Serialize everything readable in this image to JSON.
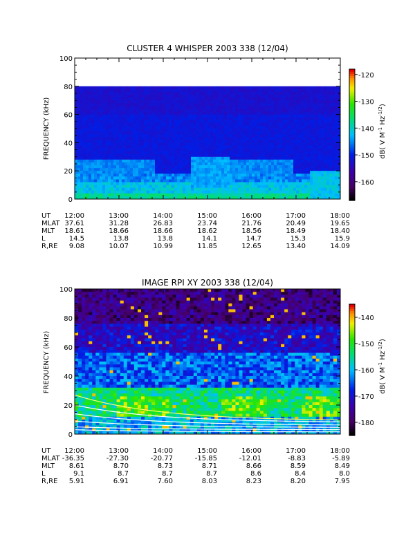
{
  "chart_data": [
    {
      "type": "heatmap",
      "title": "CLUSTER 4 WHISPER 2003 338 (12/04)",
      "ylabel": "FREQUENCY (kHz)",
      "ylim": [
        0,
        100
      ],
      "yticks": [
        0,
        20,
        40,
        60,
        80,
        100
      ],
      "data_ylim": [
        0,
        80
      ],
      "x_ticks": [
        "12:00",
        "13:00",
        "14:00",
        "15:00",
        "16:00",
        "17:00",
        "18:00"
      ],
      "colorbar": {
        "label_parts": [
          "dB( V M",
          "-1",
          " Hz",
          "-1/2",
          ")"
        ],
        "range": [
          -167,
          -118
        ],
        "ticks": [
          -120,
          -130,
          -140,
          -150,
          -160
        ]
      },
      "ephemeris": [
        {
          "label": "UT",
          "values": [
            "12:00",
            "13:00",
            "14:00",
            "15:00",
            "16:00",
            "17:00",
            "18:00"
          ]
        },
        {
          "label": "MLAT",
          "values": [
            "37.61",
            "31.28",
            "26.83",
            "23.74",
            "21.76",
            "20.49",
            "19.65"
          ]
        },
        {
          "label": "MLT",
          "values": [
            "18.61",
            "18.66",
            "18.66",
            "18.62",
            "18.56",
            "18.49",
            "18.40"
          ]
        },
        {
          "label": "L",
          "values": [
            "14.5",
            "13.8",
            "13.8",
            "14.1",
            "14.7",
            "15.3",
            "15.9"
          ]
        },
        {
          "label": "R,RE",
          "values": [
            "9.08",
            "10.07",
            "10.99",
            "11.85",
            "12.65",
            "13.40",
            "14.09"
          ]
        }
      ]
    },
    {
      "type": "heatmap",
      "title": "IMAGE RPI XY 2003 338 (12/04)",
      "ylabel": "FREQUENCY (kHz)",
      "ylim": [
        0,
        100
      ],
      "yticks": [
        0,
        20,
        40,
        60,
        80,
        100
      ],
      "data_ylim": [
        0,
        100
      ],
      "x_ticks": [
        "12:00",
        "13:00",
        "14:00",
        "15:00",
        "16:00",
        "17:00",
        "18:00"
      ],
      "colorbar": {
        "label_parts": [
          "dB( V M",
          "-1",
          " Hz",
          "-1/2",
          ")"
        ],
        "range": [
          -185,
          -135
        ],
        "ticks": [
          -140,
          -150,
          -160,
          -170,
          -180
        ]
      },
      "ephemeris": [
        {
          "label": "UT",
          "values": [
            "12:00",
            "13:00",
            "14:00",
            "15:00",
            "16:00",
            "17:00",
            "18:00"
          ]
        },
        {
          "label": "MLAT",
          "values": [
            "-36.35",
            "-27.30",
            "-20.77",
            "-15.85",
            "-12.01",
            "-8.83",
            "-5.89"
          ]
        },
        {
          "label": "MLT",
          "values": [
            "8.61",
            "8.70",
            "8.73",
            "8.71",
            "8.66",
            "8.59",
            "8.49"
          ]
        },
        {
          "label": "L",
          "values": [
            "9.1",
            "8.7",
            "8.7",
            "8.7",
            "8.6",
            "8.4",
            "8.0"
          ]
        },
        {
          "label": "R,RE",
          "values": [
            "5.91",
            "6.91",
            "7.60",
            "8.03",
            "8.23",
            "8.20",
            "7.95"
          ]
        }
      ]
    }
  ]
}
